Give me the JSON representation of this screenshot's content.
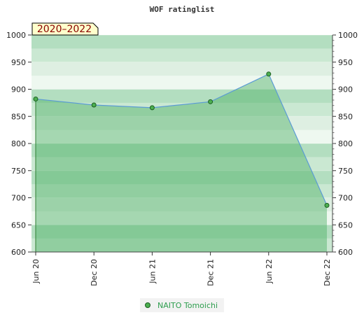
{
  "chart_data": {
    "type": "area",
    "title": "WOF ratinglist",
    "badge": "2020–2022",
    "xlabel": "",
    "ylabel": "",
    "ylim": [
      600,
      1000
    ],
    "yticks": [
      600,
      650,
      700,
      750,
      800,
      850,
      900,
      950,
      1000
    ],
    "ytick_labels": [
      "600",
      "650",
      "700",
      "750",
      "800",
      "850",
      "900",
      "950",
      "1000"
    ],
    "x_tick_labels": [
      "Jun 20",
      "Dec 20",
      "Jun 21",
      "Dec 21",
      "Jun 22",
      "Dec 22"
    ],
    "series": [
      {
        "name": "NAITO Tomoichi",
        "values": [
          882,
          871,
          866,
          877,
          928,
          686
        ]
      }
    ],
    "grid": true,
    "legend_position": "bottom-center",
    "colors": {
      "line": "#5b9bd5",
      "fill": "#6abf7b",
      "marker": "#4caf50",
      "band_light": "#ecf7ee",
      "band_dark": "#7dc58f",
      "badge_bg": "#ffffcc",
      "legend_text": "#2e9e4e"
    }
  }
}
